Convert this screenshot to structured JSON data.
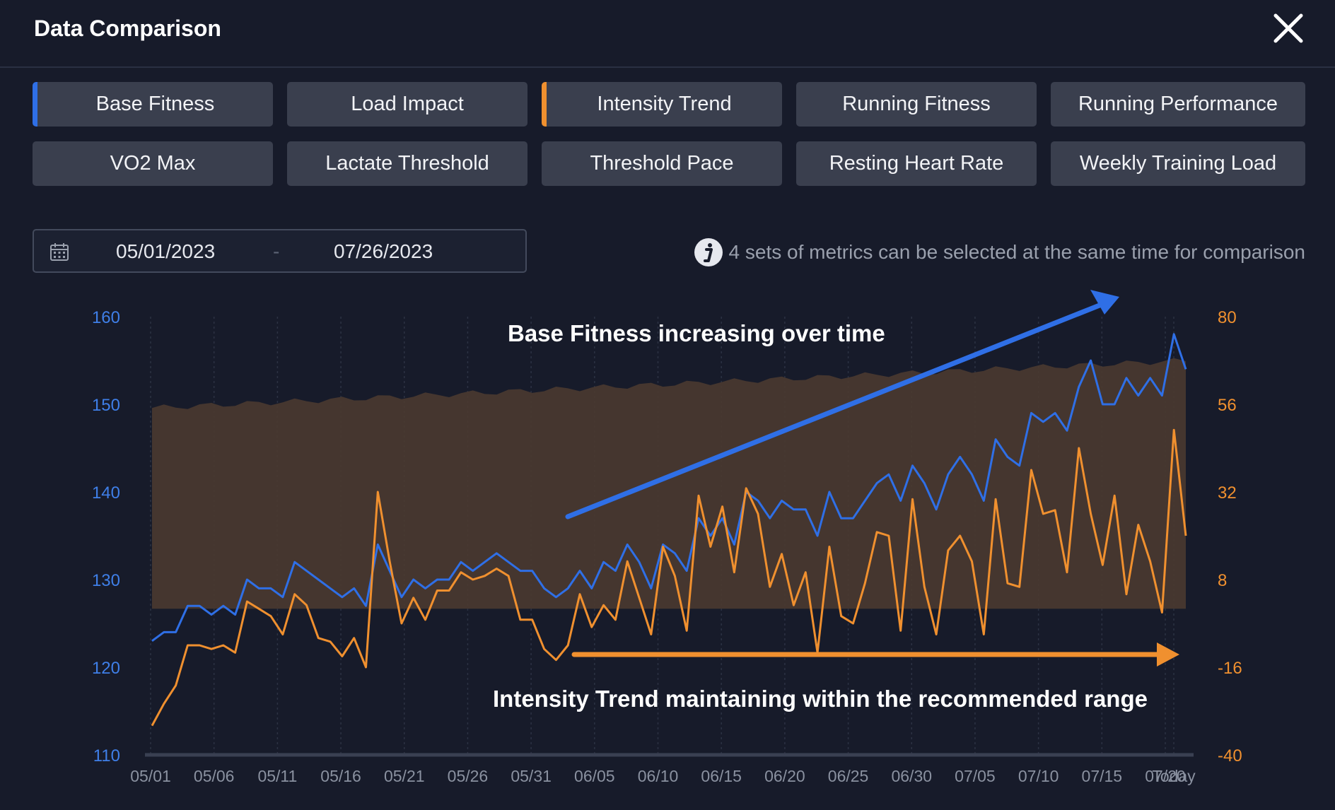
{
  "header": {
    "title": "Data Comparison"
  },
  "metrics": [
    {
      "label": "Base Fitness",
      "selected": "blue"
    },
    {
      "label": "Load Impact",
      "selected": ""
    },
    {
      "label": "Intensity Trend",
      "selected": "orange"
    },
    {
      "label": "Running Fitness",
      "selected": ""
    },
    {
      "label": "Running Performance",
      "selected": ""
    },
    {
      "label": "VO2 Max",
      "selected": ""
    },
    {
      "label": "Lactate Threshold",
      "selected": ""
    },
    {
      "label": "Threshold Pace",
      "selected": ""
    },
    {
      "label": "Resting Heart Rate",
      "selected": ""
    },
    {
      "label": "Weekly Training Load",
      "selected": ""
    }
  ],
  "date_range": {
    "start": "05/01/2023",
    "separator": "-",
    "end": "07/26/2023"
  },
  "hint": "4 sets of metrics can be selected at the same time for comparison",
  "colors": {
    "blue": "#2f6fe6",
    "orange": "#f0902f",
    "band": "#4a3a30"
  },
  "chart_data": {
    "type": "line",
    "x_ticks": [
      "05/01",
      "05/06",
      "05/11",
      "05/16",
      "05/21",
      "05/26",
      "05/31",
      "06/05",
      "06/10",
      "06/15",
      "06/20",
      "06/25",
      "06/30",
      "07/05",
      "07/10",
      "07/15",
      "07/20",
      "Today"
    ],
    "y_left": {
      "ticks": [
        "160",
        "150",
        "140",
        "130",
        "120",
        "110"
      ],
      "range": [
        110,
        160
      ]
    },
    "y_right": {
      "ticks": [
        "80",
        "56",
        "32",
        "8",
        "-16",
        "-40"
      ],
      "range": [
        -40,
        80
      ]
    },
    "annotations": {
      "top": "Base Fitness increasing over time",
      "bottom": "Intensity Trend maintaining within the recommended range"
    },
    "series": [
      {
        "name": "Base Fitness",
        "axis": "left",
        "values": [
          123,
          124,
          124,
          127,
          127,
          126,
          127,
          126,
          130,
          129,
          129,
          128,
          132,
          131,
          130,
          129,
          128,
          129,
          127,
          134,
          131,
          128,
          130,
          129,
          130,
          130,
          132,
          131,
          132,
          133,
          132,
          131,
          131,
          129,
          128,
          129,
          131,
          129,
          132,
          131,
          134,
          132,
          129,
          134,
          133,
          131,
          137,
          135,
          137,
          134,
          140,
          139,
          137,
          139,
          138,
          138,
          135,
          140,
          137,
          137,
          139,
          141,
          142,
          139,
          143,
          141,
          138,
          142,
          144,
          142,
          139,
          146,
          144,
          143,
          149,
          148,
          149,
          147,
          152,
          155,
          150,
          150,
          153,
          151,
          153,
          151,
          158,
          154
        ]
      },
      {
        "name": "Intensity Trend",
        "axis": "right",
        "values": [
          -32,
          -26,
          -21,
          -10,
          -10,
          -11,
          -10,
          -12,
          2,
          0,
          -2,
          -7,
          4,
          1,
          -8,
          -9,
          -13,
          -8,
          -16,
          32,
          13,
          -4,
          3,
          -3,
          5,
          5,
          10,
          8,
          9,
          11,
          9,
          -3,
          -3,
          -11,
          -14,
          -10,
          4,
          -5,
          1,
          -3,
          13,
          3,
          -7,
          17,
          9,
          -6,
          31,
          17,
          28,
          10,
          33,
          26,
          6,
          15,
          1,
          10,
          -12,
          17,
          -2,
          -4,
          7,
          21,
          20,
          -6,
          30,
          6,
          -7,
          16,
          20,
          13,
          -7,
          30,
          7,
          6,
          38,
          26,
          27,
          10,
          44,
          26,
          12,
          31,
          4,
          23,
          13,
          -1,
          49,
          20
        ]
      }
    ],
    "recommended_range": {
      "axis": "right",
      "low": [
        0,
        0,
        0,
        0,
        0,
        0,
        0,
        0,
        0,
        0,
        0,
        0,
        0,
        0,
        0,
        0,
        0,
        0,
        0,
        0,
        0,
        0,
        0,
        0,
        0,
        0,
        0,
        0,
        0,
        0,
        0,
        0,
        0,
        0,
        0,
        0,
        0,
        0,
        0,
        0,
        0,
        0,
        0,
        0,
        0,
        0,
        0,
        0,
        0,
        0,
        0,
        0,
        0,
        0,
        0,
        0,
        0,
        0,
        0,
        0,
        0,
        0,
        0,
        0,
        0,
        0,
        0,
        0,
        0,
        0,
        0,
        0,
        0,
        0,
        0,
        0,
        0,
        0,
        0,
        0,
        0,
        0,
        0,
        0,
        0,
        0,
        0,
        0
      ],
      "high_start": 55,
      "high_end": 68
    }
  }
}
